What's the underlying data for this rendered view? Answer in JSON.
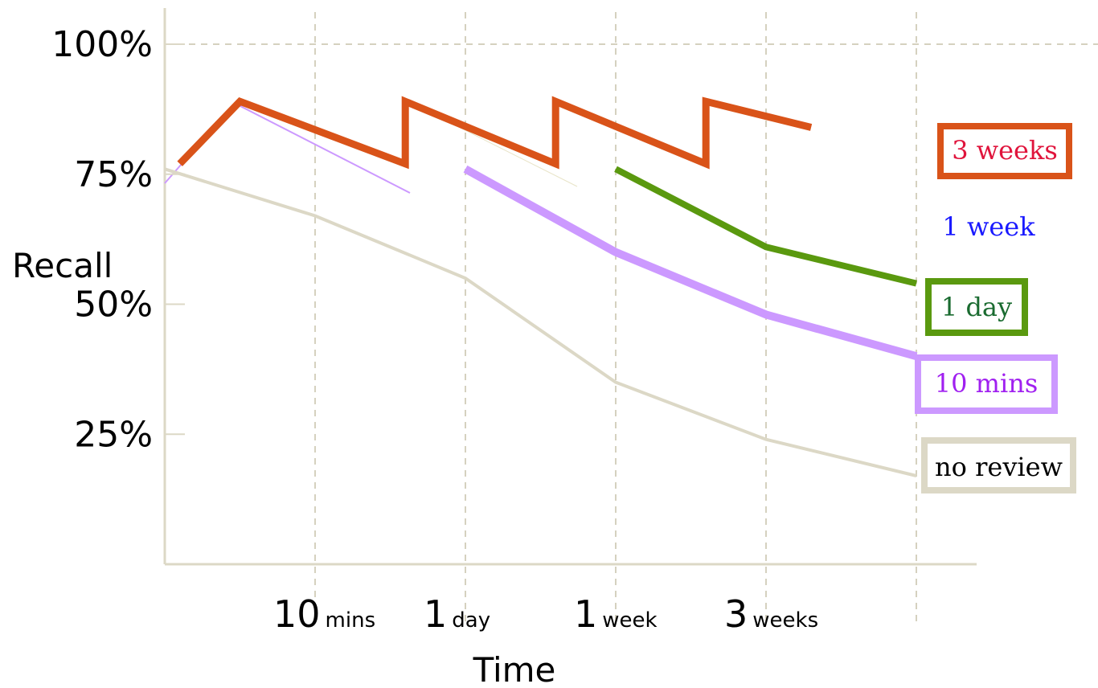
{
  "chart_data": {
    "type": "line",
    "xlabel": "Time",
    "ylabel": "Recall",
    "ytick_labels": [
      {
        "value": 100,
        "label": "100%"
      },
      {
        "value": 75,
        "label": "75%"
      },
      {
        "value": 50,
        "label": "50%"
      },
      {
        "value": 25,
        "label": "25%"
      }
    ],
    "xtick_labels": [
      {
        "value": 1,
        "main": "10",
        "sub": "mins"
      },
      {
        "value": 2,
        "main": "1",
        "sub": "day"
      },
      {
        "value": 3,
        "main": "1",
        "sub": "week"
      },
      {
        "value": 4,
        "main": "3",
        "sub": "weeks"
      }
    ],
    "xlim": [
      0,
      5
    ],
    "ylim": [
      0,
      100
    ],
    "grid": true,
    "series": [
      {
        "name": "no review",
        "color": "#dcd8c6",
        "points": [
          [
            0,
            76
          ],
          [
            1,
            67
          ],
          [
            2,
            55
          ],
          [
            3,
            35
          ],
          [
            4,
            24
          ],
          [
            5,
            17
          ]
        ]
      },
      {
        "name": "10 mins",
        "color": "#cc99ff",
        "points": [
          [
            2,
            76
          ],
          [
            3,
            60
          ],
          [
            4,
            48
          ],
          [
            5,
            40
          ]
        ]
      },
      {
        "name": "1 day",
        "color": "#5a990f",
        "points": [
          [
            3,
            76
          ],
          [
            4,
            61
          ],
          [
            5,
            54
          ]
        ]
      },
      {
        "name": "3 weeks",
        "color": "#d95319",
        "points": [
          [
            0.1,
            77
          ],
          [
            0.5,
            89
          ],
          [
            1.6,
            77
          ],
          [
            1.6,
            89
          ],
          [
            2.6,
            77
          ],
          [
            2.6,
            89
          ],
          [
            3.6,
            77
          ],
          [
            3.6,
            89
          ],
          [
            4.3,
            84
          ]
        ]
      }
    ],
    "legend": [
      {
        "label": "3 weeks",
        "text_color": "#e0143c",
        "border_color": "#d95319"
      },
      {
        "label": "1 week",
        "text_color": "#1a1aff",
        "border_color": ""
      },
      {
        "label": "1 day",
        "text_color": "#1a6b30",
        "border_color": "#5a990f"
      },
      {
        "label": "10 mins",
        "text_color": "#a020f0",
        "border_color": "#cc99ff"
      },
      {
        "label": "no review",
        "text_color": "#000000",
        "border_color": "#dcd8c6"
      }
    ]
  }
}
